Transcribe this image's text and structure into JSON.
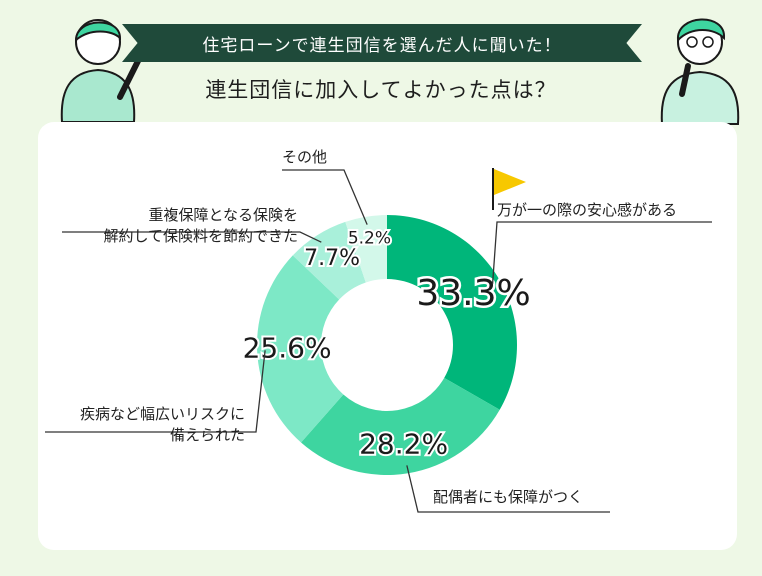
{
  "header": {
    "banner": "住宅ローンで連生団信を選んだ人に聞いた！",
    "title": "連生団信に加入してよかった点は？"
  },
  "chart_data": {
    "type": "pie",
    "variant": "donut",
    "series": [
      {
        "label": "万が一の際の安心感がある",
        "value": 33.3,
        "display": "33.3%",
        "color": "#00b67a"
      },
      {
        "label": "配偶者にも保障がつく",
        "value": 28.2,
        "display": "28.2%",
        "color": "#3ed5a0"
      },
      {
        "label": "疾病など幅広いリスクに\n備えられた",
        "value": 25.6,
        "display": "25.6%",
        "color": "#7de8c6"
      },
      {
        "label": "重複保障となる保険を\n解約して保険料を節約できた",
        "value": 7.7,
        "display": "7.7%",
        "color": "#a9f0da"
      },
      {
        "label": "その他",
        "value": 5.2,
        "display": "5.2%",
        "color": "#d3f8ea"
      }
    ],
    "annotation_icon": "flag-icon",
    "flag_color": "#f7c800"
  }
}
